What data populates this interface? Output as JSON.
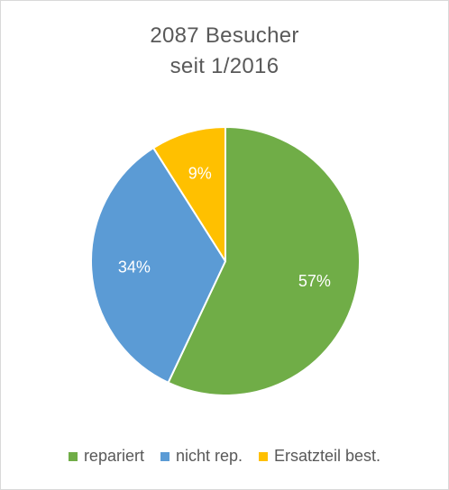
{
  "chart_data": {
    "type": "pie",
    "title": [
      "2087 Besucher",
      "seit 1/2016"
    ],
    "slices": [
      {
        "label": "repariert",
        "value": 57,
        "display": "57%",
        "color": "#70ad47"
      },
      {
        "label": "nicht rep.",
        "value": 34,
        "display": "34%",
        "color": "#5b9bd5"
      },
      {
        "label": "Ersatzteil best.",
        "value": 9,
        "display": "9%",
        "color": "#ffc000"
      }
    ],
    "legend_position": "bottom"
  }
}
